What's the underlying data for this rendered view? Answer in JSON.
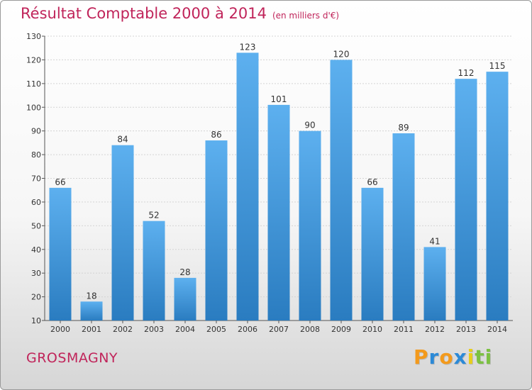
{
  "chart_data": {
    "type": "bar",
    "title": "Résultat Comptable 2000 à 2014",
    "subtitle": "(en milliers d'€)",
    "categories": [
      "2000",
      "2001",
      "2002",
      "2003",
      "2004",
      "2005",
      "2006",
      "2007",
      "2008",
      "2009",
      "2010",
      "2011",
      "2012",
      "2013",
      "2014"
    ],
    "values": [
      66,
      18,
      84,
      52,
      28,
      86,
      123,
      101,
      90,
      120,
      66,
      89,
      41,
      112,
      115
    ],
    "ylim": [
      10,
      130
    ],
    "yticks": [
      10,
      20,
      30,
      40,
      50,
      60,
      70,
      80,
      90,
      100,
      110,
      120,
      130
    ],
    "grid": true,
    "bar_color": "#3a8fd6"
  },
  "footer": {
    "commune": "GROSMAGNY",
    "brand": [
      "P",
      "r",
      "o",
      "x",
      "i",
      "t",
      "i"
    ],
    "brand_colors": [
      "#f39a1c",
      "#2c8ad7",
      "#f39a1c",
      "#2c8ad7",
      "#e8ce1a",
      "#7cc142",
      "#7cc142"
    ]
  }
}
